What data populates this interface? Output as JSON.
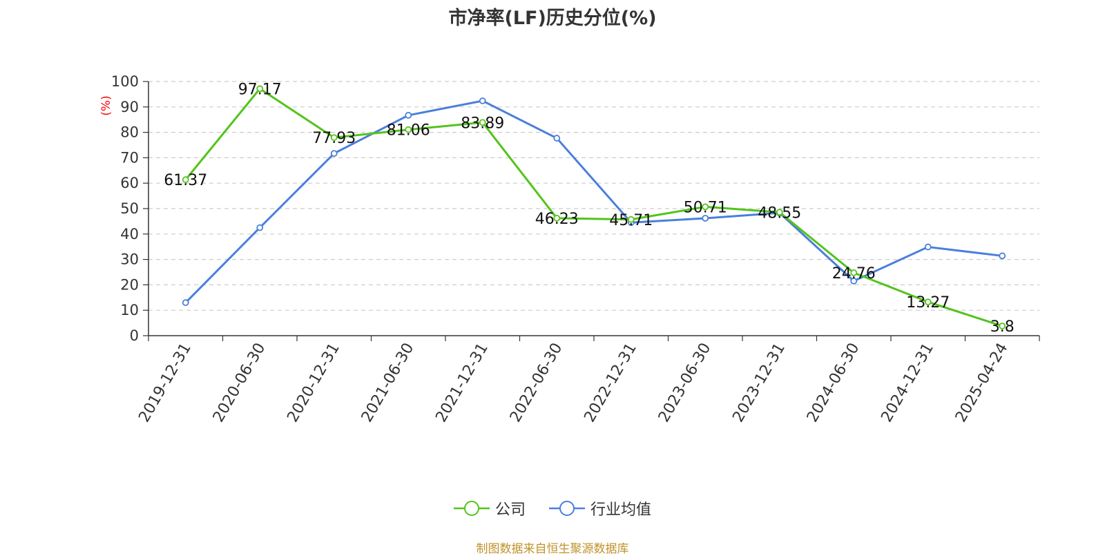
{
  "chart_data": {
    "type": "line",
    "title": "市净率(LF)历史分位(%)",
    "ylabel": "(%)",
    "ylim": [
      0,
      100
    ],
    "yticks": [
      0,
      10,
      20,
      30,
      40,
      50,
      60,
      70,
      80,
      90,
      100
    ],
    "grid": true,
    "legend_position": "bottom",
    "categories": [
      "2019-12-31",
      "2020-06-30",
      "2020-12-31",
      "2021-06-30",
      "2021-12-31",
      "2022-06-30",
      "2022-12-31",
      "2023-06-30",
      "2023-12-31",
      "2024-06-30",
      "2024-12-31",
      "2025-04-24"
    ],
    "series": [
      {
        "name": "公司",
        "color": "#52c41a",
        "values": [
          61.37,
          97.17,
          77.93,
          81.06,
          83.89,
          46.23,
          45.71,
          50.71,
          48.55,
          24.76,
          13.27,
          3.8
        ],
        "labels": [
          "61.37",
          "97.17",
          "77.93",
          "81.06",
          "83.89",
          "46.23",
          "45.71",
          "50.71",
          "48.55",
          "24.76",
          "13.27",
          "3.8"
        ]
      },
      {
        "name": "行业均值",
        "color": "#4a7fdc",
        "values": [
          13,
          42.5,
          71.7,
          86.7,
          92.4,
          77.7,
          44.5,
          46.2,
          48.3,
          21.5,
          34.9,
          31.4
        ]
      }
    ],
    "source": "制图数据来自恒生聚源数据库"
  }
}
